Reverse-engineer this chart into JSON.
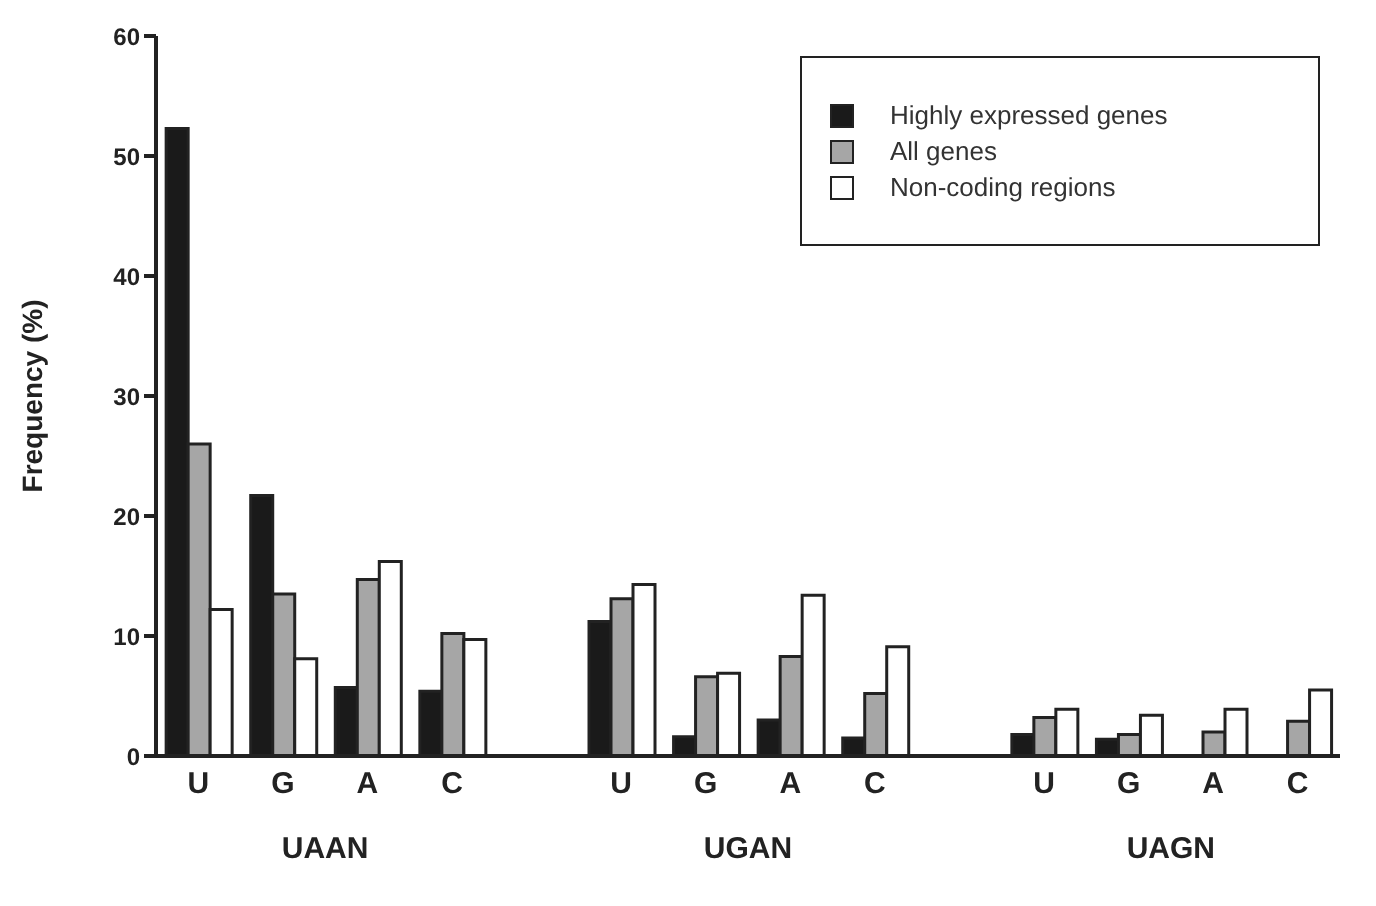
{
  "chart_data": {
    "type": "bar",
    "ylabel": "Frequency (%)",
    "categories": [
      "U",
      "G",
      "A",
      "C",
      "U",
      "G",
      "A",
      "C",
      "U",
      "G",
      "A",
      "C"
    ],
    "series": [
      {
        "name": "Highly expressed genes",
        "color": "#1a1a1a",
        "values": [
          52.3,
          21.7,
          5.7,
          5.4,
          11.2,
          1.6,
          3.0,
          1.5,
          1.8,
          1.4,
          0,
          0
        ]
      },
      {
        "name": "All genes",
        "color": "#a6a6a6",
        "values": [
          26,
          13.5,
          14.7,
          10.2,
          13.1,
          6.6,
          8.3,
          5.2,
          3.2,
          1.8,
          2.0,
          2.9
        ]
      },
      {
        "name": "Non-coding regions",
        "color": "#ffffff",
        "values": [
          12.2,
          8.1,
          16.2,
          9.7,
          14.3,
          6.9,
          13.4,
          9.1,
          3.9,
          3.4,
          3.9,
          5.5
        ]
      }
    ],
    "annotations": [
      "UAAN",
      "UGAN",
      "UAGN"
    ],
    "ylim": [
      0,
      60
    ],
    "yticks": [
      0,
      10,
      20,
      30,
      40,
      50,
      60
    ],
    "legend": "top right",
    "grid": false
  }
}
